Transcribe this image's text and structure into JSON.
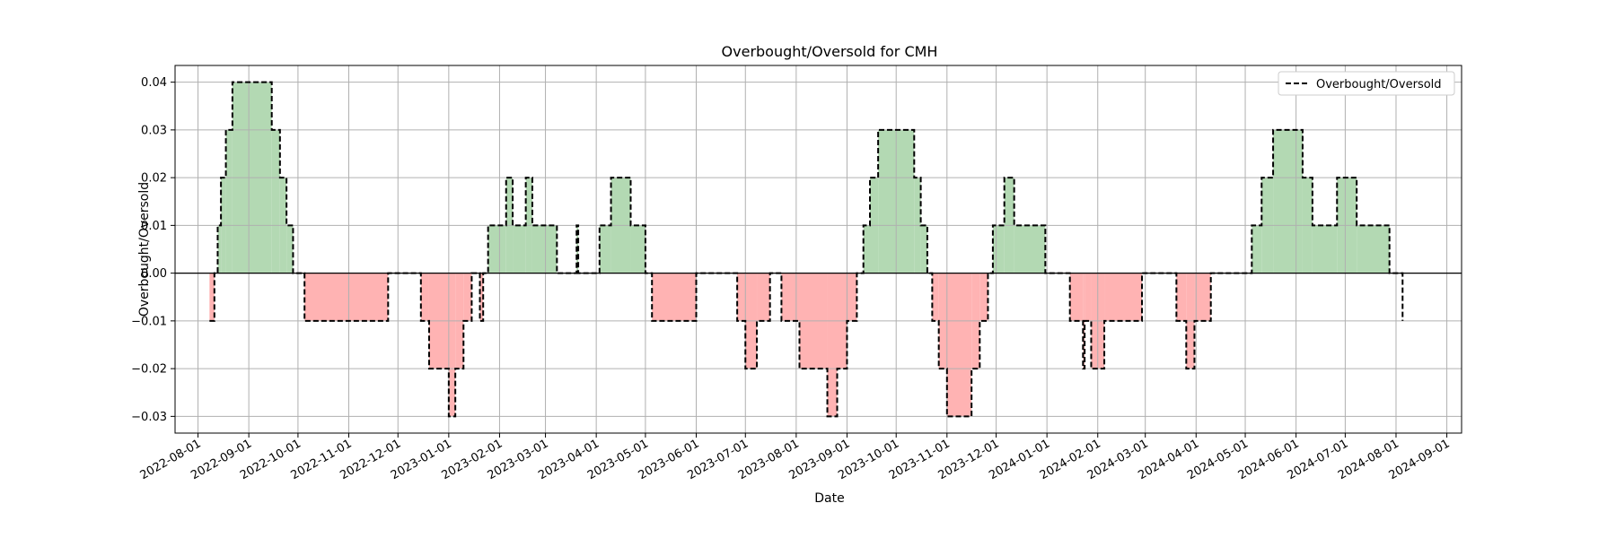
{
  "chart_data": {
    "type": "line",
    "title": "Overbought/Oversold for CMH",
    "xlabel": "Date",
    "ylabel": "Overbought/Oversold",
    "legend": {
      "placement": "top-right",
      "entries": [
        "Overbought/Oversold"
      ]
    },
    "grid": true,
    "xlim": [
      "2022-07-18",
      "2024-09-10"
    ],
    "ylim": [
      -0.0335,
      0.0435
    ],
    "x_ticks": [
      "2022-08-01",
      "2022-09-01",
      "2022-10-01",
      "2022-11-01",
      "2022-12-01",
      "2023-01-01",
      "2023-02-01",
      "2023-03-01",
      "2023-04-01",
      "2023-05-01",
      "2023-06-01",
      "2023-07-01",
      "2023-08-01",
      "2023-09-01",
      "2023-10-01",
      "2023-11-01",
      "2023-12-01",
      "2024-01-01",
      "2024-02-01",
      "2024-03-01",
      "2024-04-01",
      "2024-05-01",
      "2024-06-01",
      "2024-07-01",
      "2024-08-01",
      "2024-09-01"
    ],
    "y_ticks": [
      "0.04",
      "0.03",
      "0.02",
      "0.01",
      "0.00",
      "−0.01",
      "−0.02",
      "−0.03"
    ],
    "y_tick_values": [
      0.04,
      0.03,
      0.02,
      0.01,
      0.0,
      -0.01,
      -0.02,
      -0.03
    ],
    "colors": {
      "line": "#000000",
      "positive_fill": "#b3d9b3",
      "negative_fill": "#ffb3b3",
      "zero_line": "#000000",
      "grid": "#b0b0b0"
    },
    "series": [
      {
        "name": "Overbought/Oversold",
        "style": "dashed",
        "points": [
          [
            "2022-08-08",
            -0.01
          ],
          [
            "2022-08-11",
            0.0
          ],
          [
            "2022-08-13",
            0.01
          ],
          [
            "2022-08-15",
            0.02
          ],
          [
            "2022-08-18",
            0.03
          ],
          [
            "2022-08-22",
            0.04
          ],
          [
            "2022-09-15",
            0.03
          ],
          [
            "2022-09-20",
            0.02
          ],
          [
            "2022-09-24",
            0.01
          ],
          [
            "2022-09-28",
            0.0
          ],
          [
            "2022-10-05",
            -0.01
          ],
          [
            "2022-11-25",
            0.0
          ],
          [
            "2022-12-15",
            -0.01
          ],
          [
            "2022-12-20",
            -0.02
          ],
          [
            "2023-01-01",
            -0.03
          ],
          [
            "2023-01-05",
            -0.02
          ],
          [
            "2023-01-10",
            -0.01
          ],
          [
            "2023-01-15",
            0.0
          ],
          [
            "2023-01-20",
            -0.01
          ],
          [
            "2023-01-22",
            0.0
          ],
          [
            "2023-01-25",
            0.01
          ],
          [
            "2023-02-05",
            0.02
          ],
          [
            "2023-02-09",
            0.01
          ],
          [
            "2023-02-17",
            0.02
          ],
          [
            "2023-02-21",
            0.01
          ],
          [
            "2023-03-08",
            0.0
          ],
          [
            "2023-03-20",
            0.01
          ],
          [
            "2023-03-21",
            0.0
          ],
          [
            "2023-04-03",
            0.01
          ],
          [
            "2023-04-10",
            0.02
          ],
          [
            "2023-04-22",
            0.01
          ],
          [
            "2023-05-01",
            0.0
          ],
          [
            "2023-05-05",
            -0.01
          ],
          [
            "2023-06-01",
            0.0
          ],
          [
            "2023-06-26",
            -0.01
          ],
          [
            "2023-07-01",
            -0.02
          ],
          [
            "2023-07-08",
            -0.01
          ],
          [
            "2023-07-16",
            0.0
          ],
          [
            "2023-07-23",
            -0.01
          ],
          [
            "2023-08-03",
            -0.02
          ],
          [
            "2023-08-20",
            -0.03
          ],
          [
            "2023-08-26",
            -0.02
          ],
          [
            "2023-09-01",
            -0.01
          ],
          [
            "2023-09-07",
            0.0
          ],
          [
            "2023-09-11",
            0.01
          ],
          [
            "2023-09-15",
            0.02
          ],
          [
            "2023-09-20",
            0.03
          ],
          [
            "2023-10-12",
            0.02
          ],
          [
            "2023-10-16",
            0.01
          ],
          [
            "2023-10-20",
            0.0
          ],
          [
            "2023-10-23",
            -0.01
          ],
          [
            "2023-10-27",
            -0.02
          ],
          [
            "2023-11-01",
            -0.03
          ],
          [
            "2023-11-16",
            -0.02
          ],
          [
            "2023-11-21",
            -0.01
          ],
          [
            "2023-11-26",
            0.0
          ],
          [
            "2023-11-29",
            0.01
          ],
          [
            "2023-12-06",
            0.02
          ],
          [
            "2023-12-12",
            0.01
          ],
          [
            "2023-12-31",
            0.0
          ],
          [
            "2024-01-15",
            -0.01
          ],
          [
            "2024-01-23",
            -0.02
          ],
          [
            "2024-01-24",
            -0.01
          ],
          [
            "2024-01-28",
            -0.02
          ],
          [
            "2024-02-05",
            -0.01
          ],
          [
            "2024-02-28",
            0.0
          ],
          [
            "2024-03-20",
            -0.01
          ],
          [
            "2024-03-26",
            -0.02
          ],
          [
            "2024-03-31",
            -0.01
          ],
          [
            "2024-04-10",
            0.0
          ],
          [
            "2024-05-05",
            0.01
          ],
          [
            "2024-05-11",
            0.02
          ],
          [
            "2024-05-18",
            0.03
          ],
          [
            "2024-06-05",
            0.02
          ],
          [
            "2024-06-11",
            0.01
          ],
          [
            "2024-06-26",
            0.02
          ],
          [
            "2024-07-08",
            0.01
          ],
          [
            "2024-07-28",
            0.0
          ],
          [
            "2024-08-05",
            -0.01
          ]
        ]
      }
    ]
  }
}
